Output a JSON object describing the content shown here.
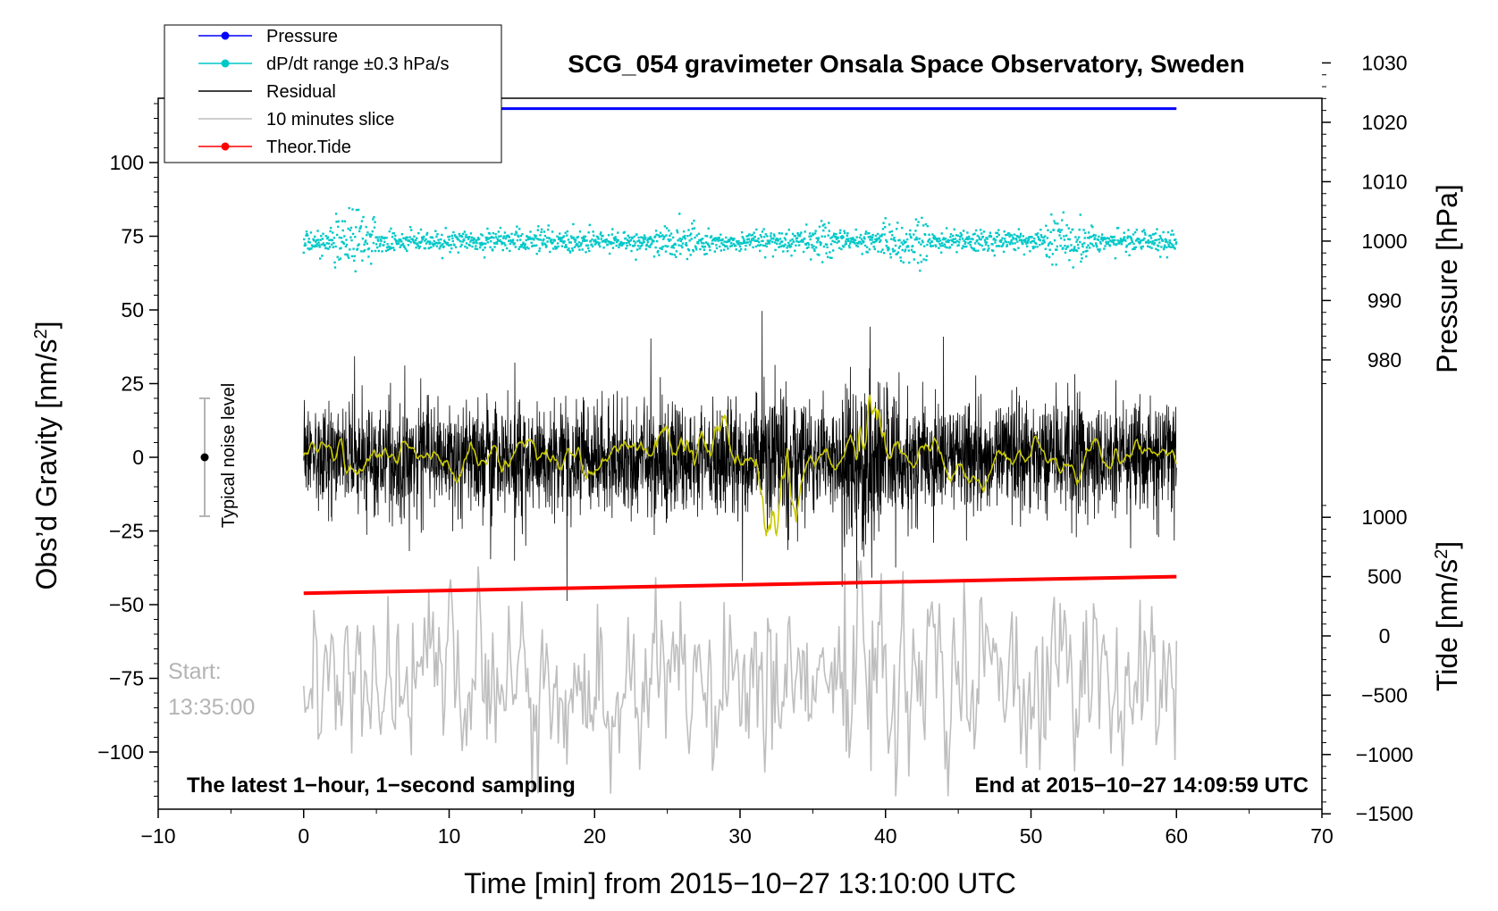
{
  "chart_data": {
    "type": "line",
    "title": "SCG_054 gravimeter Onsala Space Observatory, Sweden",
    "xlabel": "Time [min] from 2015−10−27 13:10:00 UTC",
    "ylabel_left": "Obs’d Gravity [nm/s",
    "ylabel_left_sup": "2",
    "ylabel_left_close": "]",
    "ylabel_right_pressure": "Pressure [hPa]",
    "ylabel_right_tide": "Tide [nm/s",
    "ylabel_right_tide_sup": "2",
    "ylabel_right_tide_close": "]",
    "xlim": [
      -10,
      70
    ],
    "x_ticks": [
      -10,
      0,
      10,
      20,
      30,
      40,
      50,
      60,
      70
    ],
    "x_tick_labels": [
      "−10",
      "0",
      "10",
      "20",
      "30",
      "40",
      "50",
      "60",
      "70"
    ],
    "ylim_left": [
      -120,
      122
    ],
    "y_ticks_left": [
      100,
      75,
      50,
      25,
      0,
      -25,
      -50,
      -75,
      -100
    ],
    "y_tick_labels_left": [
      "100",
      "75",
      "50",
      "25",
      "0",
      "−25",
      "−50",
      "−75",
      "−100"
    ],
    "pressure_axis": {
      "ticks": [
        1030,
        1020,
        1010,
        1000,
        990,
        980
      ],
      "tick_labels": [
        "1030",
        "1020",
        "1010",
        "1000",
        "990",
        "980"
      ]
    },
    "tide_axis": {
      "ticks": [
        1000,
        500,
        0,
        -500,
        -1000,
        -1500
      ],
      "tick_labels": [
        "1000",
        "500",
        "0",
        "−500",
        "−1000",
        "−1500"
      ]
    },
    "series": [
      {
        "name": "Pressure",
        "color": "#0000ff",
        "x": [
          0,
          60
        ],
        "y_pressure": [
          1022.3,
          1022.3
        ]
      },
      {
        "name": "dP/dt range ±0.3 hPa/s",
        "color": "#00c8c8",
        "x": [
          0,
          60
        ],
        "baseline_pressure": 1000
      },
      {
        "name": "Residual",
        "color": "#000000",
        "x": [
          0,
          60
        ],
        "amplitude_typical": 25,
        "amplitude_max": 53
      },
      {
        "name": "10 minutes slice",
        "color": "#bebebe",
        "x": [
          0,
          60
        ],
        "center_gravity": -75,
        "amplitude_max": 40
      },
      {
        "name": "Theor.Tide",
        "color": "#ff0000",
        "x": [
          0,
          60
        ],
        "y_tide": [
          360,
          500
        ]
      }
    ],
    "smoothed_residual": {
      "color": "#c8c800"
    },
    "noise_indicator": {
      "label": "Typical noise level",
      "center": 0,
      "range": [
        -20,
        20
      ]
    },
    "annotations": {
      "start_label": "Start:",
      "start_time": "13:35:00",
      "bottom_left_note": "The latest 1−hour, 1−second sampling",
      "bottom_right_note": "End at 2015−10−27 14:09:59 UTC"
    },
    "legend": {
      "position": "top-left",
      "entries": [
        {
          "label": "Pressure",
          "color": "#0000ff",
          "marker": true
        },
        {
          "label": "dP/dt range ±0.3 hPa/s",
          "color": "#00c8c8",
          "marker": true
        },
        {
          "label": "Residual",
          "color": "#000000",
          "marker": false
        },
        {
          "label": "10 minutes slice",
          "color": "#bebebe",
          "marker": false
        },
        {
          "label": "Theor.Tide",
          "color": "#ff0000",
          "marker": true
        }
      ]
    }
  }
}
